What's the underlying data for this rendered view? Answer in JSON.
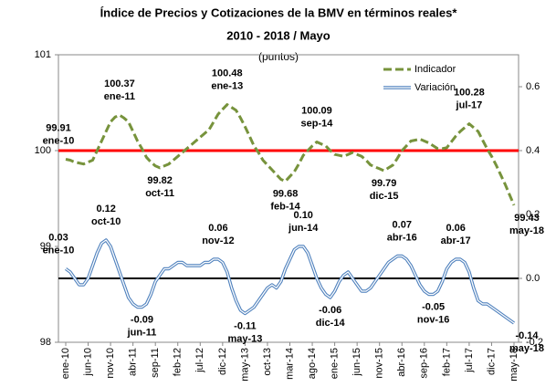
{
  "chart_data": {
    "type": "line",
    "title": "Índice de Precios y Cotizaciones de la BMV en términos reales*",
    "subtitle": "2010 - 2018 / Mayo",
    "unit_label": "(puntos)",
    "categories": [
      "ene-10",
      null,
      null,
      null,
      null,
      "jun-10",
      null,
      null,
      null,
      null,
      "nov-10",
      null,
      null,
      null,
      null,
      "abr-11",
      null,
      null,
      null,
      null,
      "sep-11",
      null,
      null,
      null,
      null,
      "feb-12",
      null,
      null,
      null,
      null,
      "jul-12",
      null,
      null,
      null,
      null,
      "dic-12",
      null,
      null,
      null,
      null,
      "may-13",
      null,
      null,
      null,
      null,
      "oct-13",
      null,
      null,
      null,
      null,
      "mar-14",
      null,
      null,
      null,
      null,
      "ago-14",
      null,
      null,
      null,
      null,
      "ene-15",
      null,
      null,
      null,
      null,
      "jun-15",
      null,
      null,
      null,
      null,
      "nov-15",
      null,
      null,
      null,
      null,
      "abr-16",
      null,
      null,
      null,
      null,
      "sep-16",
      null,
      null,
      null,
      null,
      "feb-17",
      null,
      null,
      null,
      null,
      "jul-17",
      null,
      null,
      null,
      null,
      "dic-17",
      null,
      null,
      null,
      null,
      "may-18"
    ],
    "series": [
      {
        "name": "Indicador",
        "color": "#77933c",
        "dashed": true,
        "values": [
          99.91,
          99.9,
          99.88,
          99.87,
          99.86,
          99.88,
          99.9,
          100.0,
          100.1,
          100.2,
          100.3,
          100.35,
          100.37,
          100.34,
          100.3,
          100.2,
          100.1,
          100.02,
          99.93,
          99.88,
          99.84,
          99.82,
          99.84,
          99.86,
          99.9,
          99.94,
          99.98,
          100.02,
          100.06,
          100.1,
          100.14,
          100.18,
          100.22,
          100.3,
          100.38,
          100.43,
          100.48,
          100.45,
          100.42,
          100.34,
          100.25,
          100.15,
          100.05,
          99.98,
          99.9,
          99.85,
          99.8,
          99.75,
          99.7,
          99.68,
          99.73,
          99.78,
          99.86,
          99.95,
          100.0,
          100.05,
          100.09,
          100.07,
          100.05,
          100.0,
          99.96,
          99.95,
          99.94,
          99.96,
          99.98,
          99.96,
          99.94,
          99.9,
          99.85,
          99.83,
          99.81,
          99.79,
          99.82,
          99.85,
          99.92,
          100.0,
          100.05,
          100.1,
          100.11,
          100.12,
          100.1,
          100.08,
          100.05,
          100.02,
          100.02,
          100.03,
          100.09,
          100.15,
          100.2,
          100.24,
          100.28,
          100.24,
          100.2,
          100.11,
          100.02,
          99.94,
          99.85,
          99.75,
          99.65,
          99.54,
          99.43
        ],
        "value_labels": [
          "99.91",
          null,
          null,
          null,
          null,
          null,
          null,
          null,
          null,
          null,
          null,
          null,
          "100.37",
          null,
          null,
          null,
          null,
          null,
          null,
          null,
          null,
          "99.82",
          null,
          null,
          null,
          null,
          null,
          null,
          null,
          null,
          null,
          null,
          null,
          null,
          null,
          null,
          "100.48",
          null,
          null,
          null,
          null,
          null,
          null,
          null,
          null,
          null,
          null,
          null,
          null,
          "99.68",
          null,
          null,
          null,
          null,
          null,
          null,
          "100.09",
          null,
          null,
          null,
          null,
          null,
          null,
          null,
          null,
          null,
          null,
          null,
          null,
          null,
          null,
          "99.79",
          null,
          null,
          null,
          null,
          null,
          null,
          null,
          null,
          null,
          null,
          null,
          null,
          null,
          null,
          null,
          null,
          null,
          null,
          "100.28",
          null,
          null,
          null,
          null,
          null,
          null,
          null,
          null,
          null,
          "99.43"
        ],
        "point_labels": [
          "ene-10",
          null,
          null,
          null,
          null,
          null,
          null,
          null,
          null,
          null,
          null,
          null,
          "ene-11",
          null,
          null,
          null,
          null,
          null,
          null,
          null,
          null,
          "oct-11",
          null,
          null,
          null,
          null,
          null,
          null,
          null,
          null,
          null,
          null,
          null,
          null,
          null,
          null,
          "ene-13",
          null,
          null,
          null,
          null,
          null,
          null,
          null,
          null,
          null,
          null,
          null,
          null,
          "feb-14",
          null,
          null,
          null,
          null,
          null,
          null,
          "sep-14",
          null,
          null,
          null,
          null,
          null,
          null,
          null,
          null,
          null,
          null,
          null,
          null,
          null,
          null,
          "dic-15",
          null,
          null,
          null,
          null,
          null,
          null,
          null,
          null,
          null,
          null,
          null,
          null,
          null,
          null,
          null,
          null,
          null,
          null,
          "jul-17",
          null,
          null,
          null,
          null,
          null,
          null,
          null,
          null,
          null,
          "may-18"
        ]
      },
      {
        "name": "Variación",
        "color": "#4f81bd",
        "axis": "y2",
        "dashed": false,
        "values": [
          0.03,
          0.02,
          0.0,
          -0.02,
          -0.02,
          0.0,
          0.04,
          0.08,
          0.11,
          0.12,
          0.1,
          0.06,
          0.02,
          -0.02,
          -0.06,
          -0.08,
          -0.09,
          -0.09,
          -0.08,
          -0.05,
          -0.01,
          0.01,
          0.03,
          0.03,
          0.04,
          0.05,
          0.05,
          0.04,
          0.04,
          0.04,
          0.04,
          0.05,
          0.05,
          0.06,
          0.06,
          0.05,
          0.02,
          -0.03,
          -0.07,
          -0.1,
          -0.11,
          -0.1,
          -0.09,
          -0.07,
          -0.05,
          -0.03,
          -0.02,
          -0.03,
          -0.01,
          0.03,
          0.06,
          0.09,
          0.1,
          0.1,
          0.08,
          0.04,
          0.0,
          -0.03,
          -0.05,
          -0.06,
          -0.04,
          -0.01,
          0.01,
          0.02,
          0.0,
          -0.02,
          -0.04,
          -0.04,
          -0.03,
          -0.01,
          0.01,
          0.03,
          0.05,
          0.06,
          0.07,
          0.07,
          0.06,
          0.04,
          0.01,
          -0.02,
          -0.04,
          -0.05,
          -0.05,
          -0.04,
          -0.01,
          0.03,
          0.05,
          0.06,
          0.06,
          0.05,
          0.02,
          -0.03,
          -0.07,
          -0.08,
          -0.08,
          -0.09,
          -0.1,
          -0.11,
          -0.12,
          -0.13,
          -0.14
        ],
        "value_labels": [
          "0.03",
          null,
          null,
          null,
          null,
          null,
          null,
          null,
          null,
          "0.12",
          null,
          null,
          null,
          null,
          null,
          null,
          null,
          "-0.09",
          null,
          null,
          null,
          null,
          null,
          null,
          null,
          null,
          null,
          null,
          null,
          null,
          null,
          null,
          null,
          null,
          "0.06",
          null,
          null,
          null,
          null,
          null,
          "-0.11",
          null,
          null,
          null,
          null,
          null,
          null,
          null,
          null,
          null,
          null,
          null,
          null,
          "0.10",
          null,
          null,
          null,
          null,
          null,
          "-0.06",
          null,
          null,
          null,
          null,
          null,
          null,
          null,
          null,
          null,
          null,
          null,
          null,
          null,
          null,
          null,
          "0.07",
          null,
          null,
          null,
          null,
          null,
          null,
          "-0.05",
          null,
          null,
          null,
          null,
          "0.06",
          null,
          null,
          null,
          null,
          null,
          null,
          null,
          null,
          null,
          null,
          null,
          null,
          "-0.14"
        ],
        "point_labels": [
          "ene-10",
          null,
          null,
          null,
          null,
          null,
          null,
          null,
          null,
          "oct-10",
          null,
          null,
          null,
          null,
          null,
          null,
          null,
          "jun-11",
          null,
          null,
          null,
          null,
          null,
          null,
          null,
          null,
          null,
          null,
          null,
          null,
          null,
          null,
          null,
          null,
          "nov-12",
          null,
          null,
          null,
          null,
          null,
          "may-13",
          null,
          null,
          null,
          null,
          null,
          null,
          null,
          null,
          null,
          null,
          null,
          null,
          "jun-14",
          null,
          null,
          null,
          null,
          null,
          "dic-14",
          null,
          null,
          null,
          null,
          null,
          null,
          null,
          null,
          null,
          null,
          null,
          null,
          null,
          null,
          null,
          "abr-16",
          null,
          null,
          null,
          null,
          null,
          null,
          "nov-16",
          null,
          null,
          null,
          null,
          "abr-17",
          null,
          null,
          null,
          null,
          null,
          null,
          null,
          null,
          null,
          null,
          null,
          null,
          "may-18"
        ]
      }
    ],
    "ylim": [
      98,
      101
    ],
    "yticks": [
      98,
      99,
      100,
      101
    ],
    "y2lim": [
      -0.2,
      0.7
    ],
    "y2ticks": [
      -0.2,
      0.0,
      0.2,
      0.4,
      0.6
    ],
    "reference_lines": [
      {
        "value": 100,
        "color": "#ff0000"
      },
      {
        "value": 0,
        "axis": "y2",
        "color": "#000000"
      }
    ],
    "legend": "top-right"
  }
}
